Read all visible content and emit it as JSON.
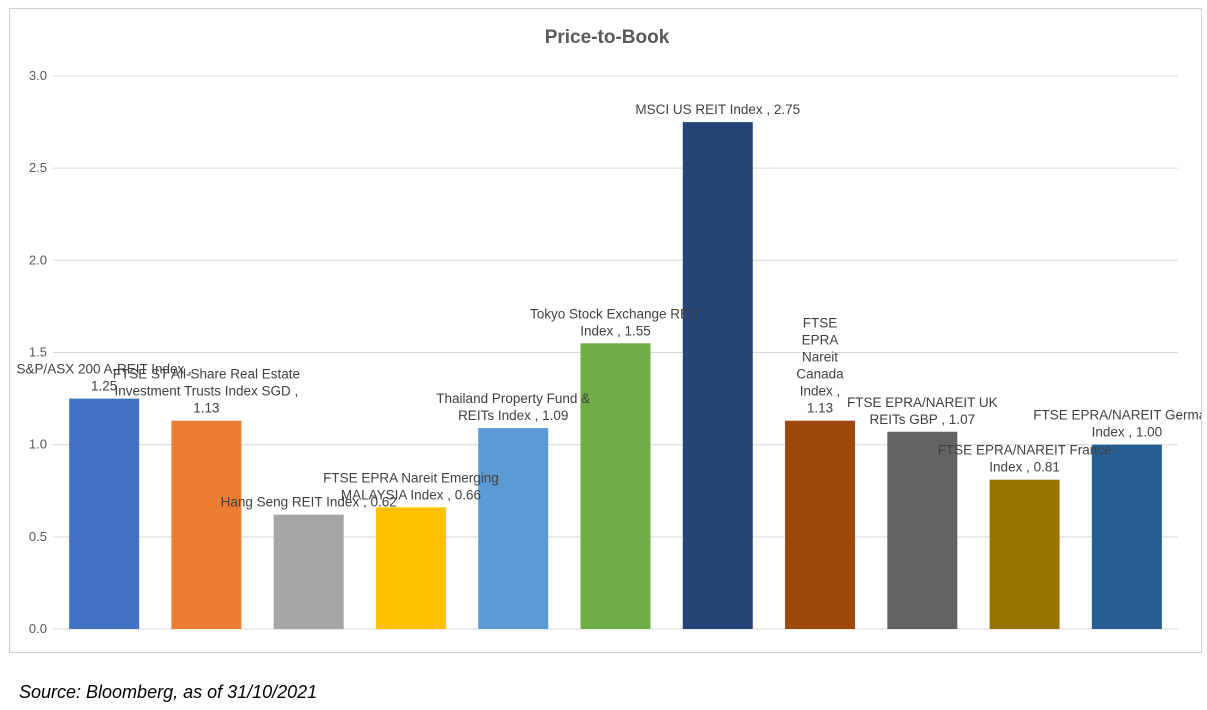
{
  "chart_data": {
    "type": "bar",
    "title": "Price-to-Book",
    "xlabel": "",
    "ylabel": "",
    "ylim": [
      0,
      3.0
    ],
    "yticks": [
      "0.0",
      "0.5",
      "1.0",
      "1.5",
      "2.0",
      "2.5",
      "3.0"
    ],
    "grid": true,
    "legend": "none",
    "categories": [
      "S&P/ASX 200 A-REIT Index",
      "FTSE ST All-Share Real Estate Investment Trusts Index SGD",
      "Hang Seng REIT Index",
      "FTSE EPRA Nareit Emerging MALAYSIA Index",
      "Thailand Property Fund & REITs Index",
      "Tokyo Stock Exchange REIT Index",
      "MSCI US REIT Index",
      "FTSE EPRA Nareit Canada Index",
      "FTSE EPRA/NAREIT UK REITs GBP",
      "FTSE EPRA/NAREIT France Index",
      "FTSE EPRA/NAREIT Germany Index"
    ],
    "values": [
      1.25,
      1.13,
      0.62,
      0.66,
      1.09,
      1.55,
      2.75,
      1.13,
      1.07,
      0.81,
      1.0
    ],
    "data_labels": [
      [
        "S&P/ASX 200 A-REIT Index ,",
        "1.25"
      ],
      [
        "FTSE ST All-Share  Real Estate",
        "Investment Trusts Index SGD ,",
        "1.13"
      ],
      [
        "Hang Seng REIT Index , 0.62"
      ],
      [
        "FTSE EPRA Nareit Emerging",
        "MALAYSIA Index , 0.66"
      ],
      [
        "Thailand  Property Fund &",
        "REITs Index , 1.09"
      ],
      [
        "Tokyo Stock Exchange REIT",
        "Index , 1.55"
      ],
      [
        "MSCI US REIT Index , 2.75"
      ],
      [
        "FTSE",
        "EPRA",
        "Nareit",
        "Canada",
        "Index ,",
        "1.13"
      ],
      [
        "FTSE EPRA/NAREIT UK",
        "REITs GBP , 1.07"
      ],
      [
        "FTSE EPRA/NAREIT France",
        "Index , 0.81"
      ],
      [
        "FTSE EPRA/NAREIT Germany",
        "Index , 1.00"
      ]
    ],
    "colors": [
      "#4472C4",
      "#ED7D31",
      "#A5A5A5",
      "#FFC000",
      "#5B9BD5",
      "#70AD47",
      "#264478",
      "#9E480E",
      "#636363",
      "#997300",
      "#255E91"
    ]
  },
  "source_note": "Source: Bloomberg, as of 31/10/2021"
}
